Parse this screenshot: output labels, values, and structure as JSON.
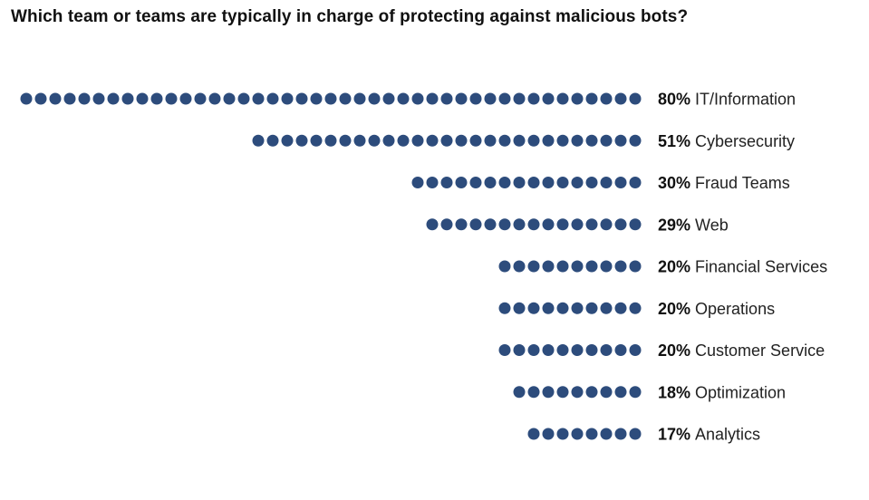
{
  "chart_data": {
    "type": "bar",
    "title": "Which team or teams are typically in charge of protecting against malicious bots?",
    "xlabel": "",
    "ylabel": "",
    "value_suffix": "%",
    "categories": [
      "IT/Information",
      "Cybersecurity",
      "Fraud Teams",
      "Web",
      "Financial Services",
      "Operations",
      "Customer Service",
      "Optimization",
      "Analytics"
    ],
    "values": [
      80,
      51,
      30,
      29,
      20,
      20,
      20,
      18,
      17
    ],
    "dot_counts": [
      43,
      27,
      16,
      15,
      10,
      10,
      10,
      9,
      8
    ],
    "color": "#2d4c7c"
  }
}
